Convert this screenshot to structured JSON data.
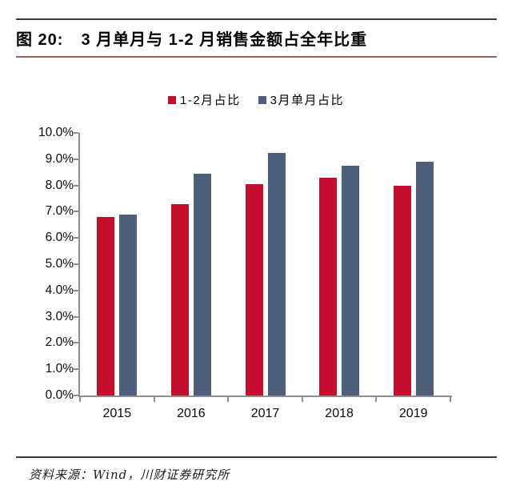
{
  "figure": {
    "title_prefix": "图 20:",
    "title": "3 月单月与 1-2 月销售金额占全年比重"
  },
  "chart_data": {
    "type": "bar",
    "title": "图 20: 3 月单月与 1-2 月销售金额占全年比重",
    "categories": [
      "2015",
      "2016",
      "2017",
      "2018",
      "2019"
    ],
    "series": [
      {
        "name": "1-2月占比",
        "color": "#c40e2e",
        "values": [
          6.8,
          7.3,
          8.05,
          8.3,
          8.0
        ]
      },
      {
        "name": "3月单月占比",
        "color": "#4d5f7b",
        "values": [
          6.9,
          8.45,
          9.25,
          8.75,
          8.9
        ]
      }
    ],
    "xlabel": "",
    "ylabel": "",
    "ylim": [
      0,
      10
    ],
    "ytick_step": 1,
    "ytick_suffix": "%",
    "ytick_decimals": 1,
    "grid": false,
    "legend_position": "top"
  },
  "footer": {
    "source": "资料来源：Wind，川财证券研究所"
  },
  "colors": {
    "series1": "#c40e2e",
    "series2": "#4d5f7b",
    "axis": "#8e8e8e",
    "title_underline": "#b05656",
    "rule_dark": "#3a3a3a"
  }
}
